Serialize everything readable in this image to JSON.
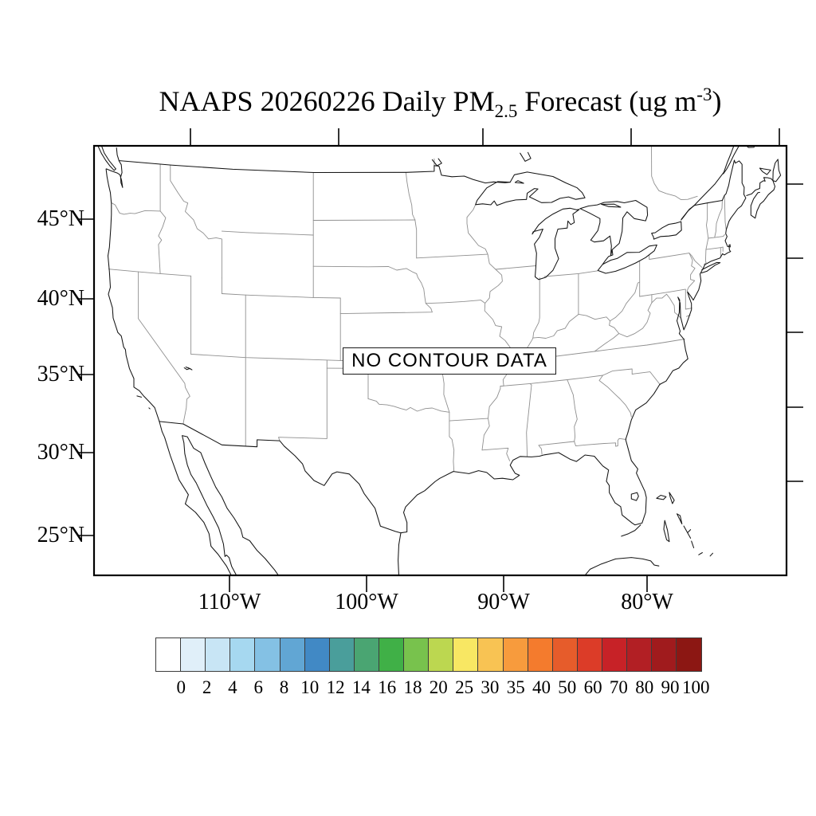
{
  "title": {
    "prefix": "NAAPS 20260226 Daily PM",
    "subscript": "2.5",
    "middle": " Forecast (ug m",
    "superscript": "-3",
    "suffix": ")"
  },
  "map": {
    "no_data_label": "NO CONTOUR DATA",
    "lat_labels": [
      "45°N",
      "40°N",
      "35°N",
      "30°N",
      "25°N"
    ],
    "lon_labels": [
      "110°W",
      "100°W",
      "90°W",
      "80°W"
    ]
  },
  "colorbar": {
    "tick_labels": [
      "0",
      "2",
      "4",
      "6",
      "8",
      "10",
      "12",
      "14",
      "16",
      "18",
      "20",
      "25",
      "30",
      "35",
      "40",
      "50",
      "60",
      "70",
      "80",
      "90",
      "100"
    ],
    "colors": [
      "#ffffff",
      "#e0eff9",
      "#c8e5f5",
      "#a6d8f0",
      "#84c1e4",
      "#61a6d4",
      "#4189c5",
      "#4a9e9b",
      "#4aa572",
      "#40b047",
      "#78c24d",
      "#bcd750",
      "#f8e763",
      "#f8c353",
      "#f79b3d",
      "#f47b2d",
      "#e65c2b",
      "#dc3c28",
      "#c72227",
      "#b21f24",
      "#a01b1d",
      "#8c1713"
    ]
  },
  "chart_data": {
    "type": "heatmap",
    "title": "NAAPS 20260226 Daily PM2.5 Forecast (ug m-3)",
    "x_tick_labels": [
      "110°W",
      "100°W",
      "90°W",
      "80°W"
    ],
    "y_tick_labels": [
      "45°N",
      "40°N",
      "35°N",
      "30°N",
      "25°N"
    ],
    "values": "NO CONTOUR DATA",
    "colorbar_levels": [
      0,
      2,
      4,
      6,
      8,
      10,
      12,
      14,
      16,
      18,
      20,
      25,
      30,
      35,
      40,
      50,
      60,
      70,
      80,
      90,
      100
    ],
    "legend_position": "bottom"
  }
}
